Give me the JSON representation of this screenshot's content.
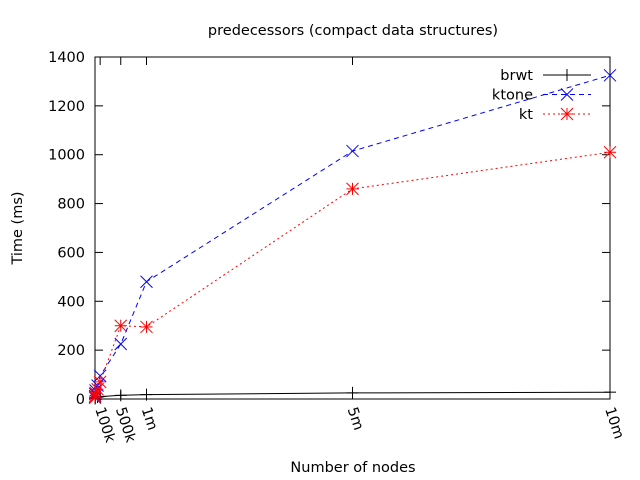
{
  "chart_data": {
    "type": "line",
    "title": "predecessors (compact data structures)",
    "xlabel": "Number of nodes",
    "ylabel": "Time (ms)",
    "xlim": [
      0,
      10000000
    ],
    "ylim": [
      0,
      1400
    ],
    "yticks": [
      0,
      200,
      400,
      600,
      800,
      1000,
      1200,
      1400
    ],
    "xticks": [
      {
        "value": 100000,
        "label": "100k"
      },
      {
        "value": 500000,
        "label": "500k"
      },
      {
        "value": 1000000,
        "label": "1m"
      },
      {
        "value": 5000000,
        "label": "5m"
      },
      {
        "value": 10000000,
        "label": "10m"
      }
    ],
    "legend_position": "top-right",
    "grid": false,
    "series": [
      {
        "name": "brwt",
        "color": "#000000",
        "marker": "plus",
        "dash": "solid",
        "x": [
          1000,
          5000,
          10000,
          50000,
          100000,
          500000,
          1000000,
          5000000,
          10000000
        ],
        "y": [
          2,
          5,
          6,
          8,
          10,
          15,
          18,
          25,
          28
        ]
      },
      {
        "name": "ktone",
        "color": "#0000ff",
        "marker": "cross",
        "dash": "dashed",
        "x": [
          1000,
          5000,
          10000,
          50000,
          100000,
          500000,
          1000000,
          5000000,
          10000000
        ],
        "y": [
          10,
          20,
          35,
          55,
          95,
          225,
          480,
          1015,
          1325
        ]
      },
      {
        "name": "kt",
        "color": "#ff0000",
        "marker": "star",
        "dash": "dotted",
        "x": [
          1000,
          5000,
          10000,
          50000,
          100000,
          500000,
          1000000,
          5000000,
          10000000
        ],
        "y": [
          5,
          12,
          25,
          40,
          70,
          300,
          295,
          860,
          1010
        ]
      }
    ]
  }
}
